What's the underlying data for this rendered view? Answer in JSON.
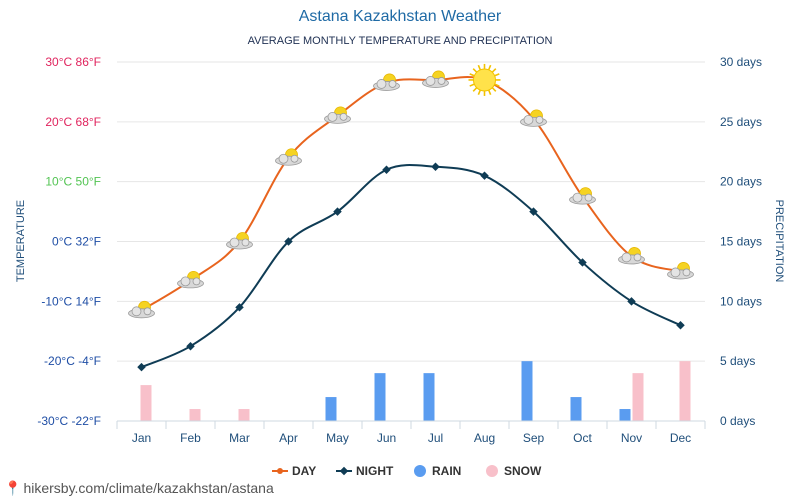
{
  "chart_data": {
    "type": "line",
    "title": "Astana Kazakhstan Weather",
    "subtitle": "AVERAGE MONTHLY TEMPERATURE AND PRECIPITATION",
    "ylabel_left": "TEMPERATURE",
    "ylabel_right": "PRECIPITATION",
    "categories": [
      "Jan",
      "Feb",
      "Mar",
      "Apr",
      "May",
      "Jun",
      "Jul",
      "Aug",
      "Sep",
      "Oct",
      "Nov",
      "Dec"
    ],
    "ylim_temp_c": [
      -30,
      30
    ],
    "ylim_precip_days": [
      0,
      30
    ],
    "left_ticks": [
      {
        "c": 30,
        "label": "30°C 86°F",
        "color": "#e0245e"
      },
      {
        "c": 20,
        "label": "20°C 68°F",
        "color": "#e0245e"
      },
      {
        "c": 10,
        "label": "10°C 50°F",
        "color": "#53c453"
      },
      {
        "c": 0,
        "label": "0°C 32°F",
        "color": "#1f4ea5"
      },
      {
        "c": -10,
        "label": "-10°C 14°F",
        "color": "#1f4ea5"
      },
      {
        "c": -20,
        "label": "-20°C -4°F",
        "color": "#1f4ea5"
      },
      {
        "c": -30,
        "label": "-30°C -22°F",
        "color": "#1f4ea5"
      }
    ],
    "right_ticks": [
      {
        "v": 30,
        "label": "30 days"
      },
      {
        "v": 25,
        "label": "25 days"
      },
      {
        "v": 20,
        "label": "20 days"
      },
      {
        "v": 15,
        "label": "15 days"
      },
      {
        "v": 10,
        "label": "10 days"
      },
      {
        "v": 5,
        "label": "5 days"
      },
      {
        "v": 0,
        "label": "0 days"
      }
    ],
    "series": [
      {
        "name": "DAY",
        "kind": "line",
        "color": "#e8641e",
        "axis": "temp",
        "values": [
          -11.5,
          -6.5,
          0,
          14,
          21,
          26.5,
          27,
          27,
          20.5,
          7.5,
          -2.5,
          -5
        ]
      },
      {
        "name": "NIGHT",
        "kind": "line",
        "color": "#0f3c55",
        "axis": "temp",
        "values": [
          -21,
          -17.5,
          -11,
          0,
          5,
          12,
          12.5,
          11,
          5,
          -3.5,
          -10,
          -14
        ]
      },
      {
        "name": "RAIN",
        "kind": "bar",
        "color": "#5a9cf0",
        "axis": "precip",
        "values": [
          0,
          0,
          0,
          0,
          2,
          4,
          4,
          0,
          5,
          2,
          1,
          0
        ]
      },
      {
        "name": "SNOW",
        "kind": "bar",
        "color": "#f8c0ca",
        "axis": "precip",
        "values": [
          3,
          1,
          1,
          0,
          0,
          0,
          0,
          0,
          0,
          0,
          4,
          5
        ]
      }
    ],
    "weather_icons": [
      "cloud-sun",
      "cloud-sun",
      "cloud-sun",
      "cloud-sun",
      "cloud-sun",
      "cloud-sun",
      "cloud-sun",
      "sun",
      "cloud-sun",
      "cloud-sun",
      "cloud-sun",
      "cloud-sun"
    ]
  },
  "legend": [
    {
      "label": "DAY",
      "color": "#e8641e",
      "marker": "circle-line"
    },
    {
      "label": "NIGHT",
      "color": "#0f3c55",
      "marker": "diamond-line"
    },
    {
      "label": "RAIN",
      "color": "#5a9cf0",
      "marker": "circle"
    },
    {
      "label": "SNOW",
      "color": "#f8c0ca",
      "marker": "circle"
    }
  ],
  "footer": {
    "text": "hikersby.com/climate/kazakhstan/astana",
    "icon": "map-pin-icon"
  }
}
